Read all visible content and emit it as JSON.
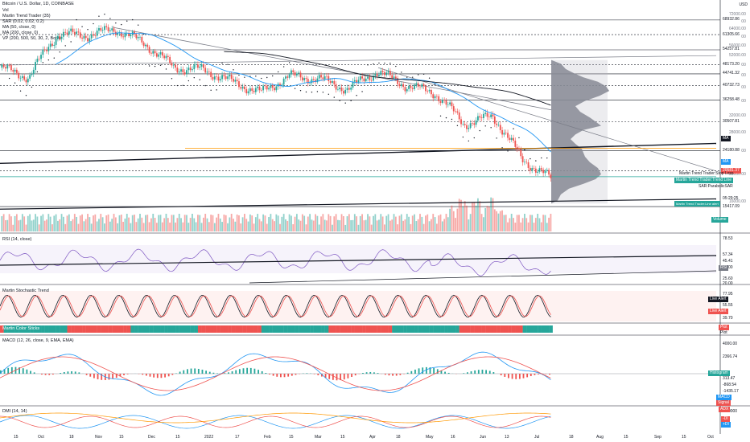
{
  "header": {
    "symbol_line": "Bitcoin / U.S. Dollar, 1D, COINBASE",
    "indicators": [
      "Vol",
      "Martin Trend Trader (35)",
      "SAR (0.02, 0.02, 0.2)",
      "MA (50, close, 0)",
      "MA (200, close, 0)",
      "VP (200, 500, 50, 30, 2, Both)"
    ]
  },
  "price_axis": {
    "currency": "USD",
    "ticks": [
      "72000.00",
      "68000.00",
      "64000.00",
      "60000.00",
      "56000.00",
      "52000.00",
      "48000.00",
      "44000.00",
      "40000.00",
      "36000.00",
      "32000.00",
      "28000.00",
      "24000.00",
      "20000.00",
      "16000.00"
    ],
    "levels": [
      "68932.86",
      "61305.66",
      "54257.81",
      "48173.20",
      "44741.32",
      "40732.73",
      "36258.48",
      "30507.81",
      "24180.88",
      "20581.37",
      "15417.09"
    ],
    "countdown": "05:29:25",
    "tags": {
      "ma": "MA",
      "stop_loss": "Martin Trend Trader:Stop Loss",
      "trend_line": "Martin Trend Trader:Trend Line",
      "parabolic": "SAR:ParabolicSAR",
      "line_alert": "Martin Trend Trader:Line alert",
      "volume": "Volume"
    }
  },
  "rsi_pane": {
    "title": "RSI (14, close)",
    "levels": [
      "78.53",
      "57.34",
      "45.41",
      "40.00",
      "25.60",
      "20.00"
    ],
    "rsi_tag": "RSI"
  },
  "stoch_pane": {
    "title": "Martin Stochastic Trend",
    "levels": [
      "77.95",
      "55.55",
      "39.70"
    ],
    "live_alert_1": "Live Alert",
    "live_alert_2": "Live Alert"
  },
  "strip_pane": {
    "title": "Martin Color Sticks",
    "tags": [
      "Plot",
      "Plot"
    ]
  },
  "macd_pane": {
    "title": "MACD (12, 26, close, 9, EMA, EMA)",
    "levels": [
      "4000.00",
      "2366.74",
      "313.47",
      "-868.54",
      "-1435.17"
    ],
    "tags": [
      "Histogram",
      "MACD",
      "Signal"
    ]
  },
  "dmi_pane": {
    "title": "DMI (14, 14)",
    "levels": [
      "40.0000"
    ],
    "tags": [
      "ADX",
      "-DI",
      "+DI"
    ]
  },
  "time_axis": {
    "labels": [
      "15",
      "Oct",
      "18",
      "Nov",
      "15",
      "Dec",
      "15",
      "2022",
      "17",
      "Feb",
      "15",
      "Mar",
      "15",
      "Apr",
      "18",
      "May",
      "16",
      "Jun",
      "13",
      "Jul",
      "18",
      "Aug",
      "15",
      "Sep",
      "15",
      "Oct"
    ]
  },
  "colors": {
    "up": "#26a69a",
    "down": "#ef5350",
    "ma50": "#2196f3",
    "ma200": "#131722",
    "orange": "#ff9800",
    "profile": "#787b86",
    "blue_tag": "#2196f3",
    "teal_tag": "#26a69a",
    "red_tag": "#ef5350"
  },
  "chart_data": {
    "type": "line",
    "title": "Bitcoin / U.S. Dollar, 1D, COINBASE",
    "x": [
      "Sep 15",
      "Oct 1",
      "Oct 18",
      "Nov 1",
      "Nov 15",
      "Dec 1",
      "Dec 15",
      "Jan 1",
      "Jan 17",
      "Feb 1",
      "Feb 15",
      "Mar 1",
      "Mar 15",
      "Apr 1",
      "Apr 18",
      "May 1",
      "May 16",
      "Jun 1",
      "Jun 13",
      "Jul 1"
    ],
    "series": [
      {
        "name": "",
        "values": [
          47000,
          43500,
          61500,
          61000,
          64000,
          57000,
          47000,
          46300,
          42000,
          38500,
          44000,
          43000,
          39500,
          45500,
          40800,
          38400,
          29900,
          31800,
          22500,
          19300
        ]
      }
    ],
    "ylim": [
      14000,
      73000
    ],
    "ylabel": "USD",
    "xlabel": ""
  }
}
